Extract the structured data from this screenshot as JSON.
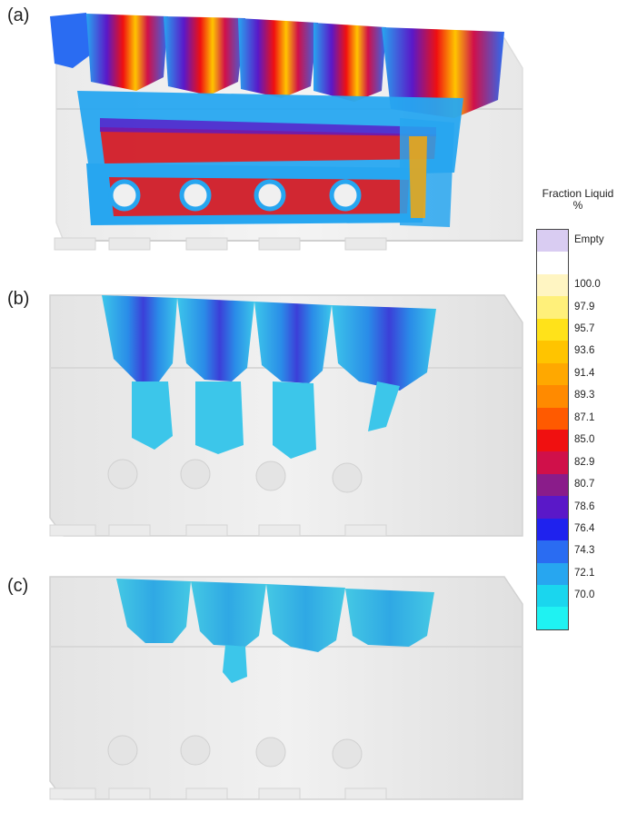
{
  "panels": [
    {
      "label": "(a)"
    },
    {
      "label": "(b)"
    },
    {
      "label": "(c)"
    }
  ],
  "legend": {
    "title_line1": "Fraction Liquid",
    "title_line2": "%",
    "entries": [
      {
        "label": "Empty",
        "color": "#d9ccf2"
      },
      {
        "label": "",
        "color": "#ffffff"
      },
      {
        "label": "100.0",
        "color": "#fff5c2"
      },
      {
        "label": "97.9",
        "color": "#fff07a"
      },
      {
        "label": "95.7",
        "color": "#ffe21a"
      },
      {
        "label": "93.6",
        "color": "#ffc400"
      },
      {
        "label": "91.4",
        "color": "#ffa800"
      },
      {
        "label": "89.3",
        "color": "#ff8a00"
      },
      {
        "label": "87.1",
        "color": "#ff5a00"
      },
      {
        "label": "85.0",
        "color": "#f01010"
      },
      {
        "label": "82.9",
        "color": "#d0104a"
      },
      {
        "label": "80.7",
        "color": "#8a1c8a"
      },
      {
        "label": "78.6",
        "color": "#5a18c8"
      },
      {
        "label": "76.4",
        "color": "#1f22ee"
      },
      {
        "label": "74.3",
        "color": "#2a6cf2"
      },
      {
        "label": "72.1",
        "color": "#27a6f0"
      },
      {
        "label": "70.0",
        "color": "#1ad6ee"
      },
      {
        "label": "",
        "color": "#1ff2f2"
      }
    ]
  }
}
